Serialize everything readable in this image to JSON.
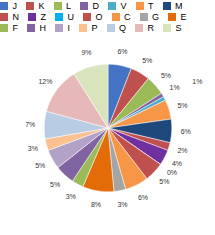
{
  "chart_data": {
    "type": "pie",
    "categories": [
      "J",
      "K",
      "L",
      "D",
      "V",
      "T",
      "M",
      "N",
      "Z",
      "U",
      "O",
      "C",
      "G",
      "E",
      "F",
      "H",
      "I",
      "P",
      "Q",
      "R",
      "S"
    ],
    "values": [
      6,
      5,
      5,
      1,
      1,
      5,
      6,
      2,
      4,
      0,
      5,
      6,
      3,
      8,
      3,
      5,
      5,
      3,
      7,
      12,
      9
    ],
    "value_labels": [
      "6%",
      "5%",
      "5%",
      "1%",
      "1%",
      "5%",
      "6%",
      "2%",
      "4%",
      "0%",
      "5%",
      "6%",
      "3%",
      "8%",
      "3%",
      "5%",
      "5%",
      "3%",
      "7%",
      "12%",
      "9%"
    ],
    "colors": [
      "#4472C4",
      "#C0504D",
      "#9BBB59",
      "#8064A2",
      "#4BACC6",
      "#F79646",
      "#1F497D",
      "#C0504D",
      "#7030A0",
      "#00B0F0",
      "#C0504D",
      "#F79646",
      "#A5A5A5",
      "#E36C09",
      "#9BBB59",
      "#8064A2",
      "#B3A2C7",
      "#FAC090",
      "#B8CCE4",
      "#E6B8B7",
      "#D8E4BC"
    ],
    "data_labels": true,
    "legend": "top"
  }
}
